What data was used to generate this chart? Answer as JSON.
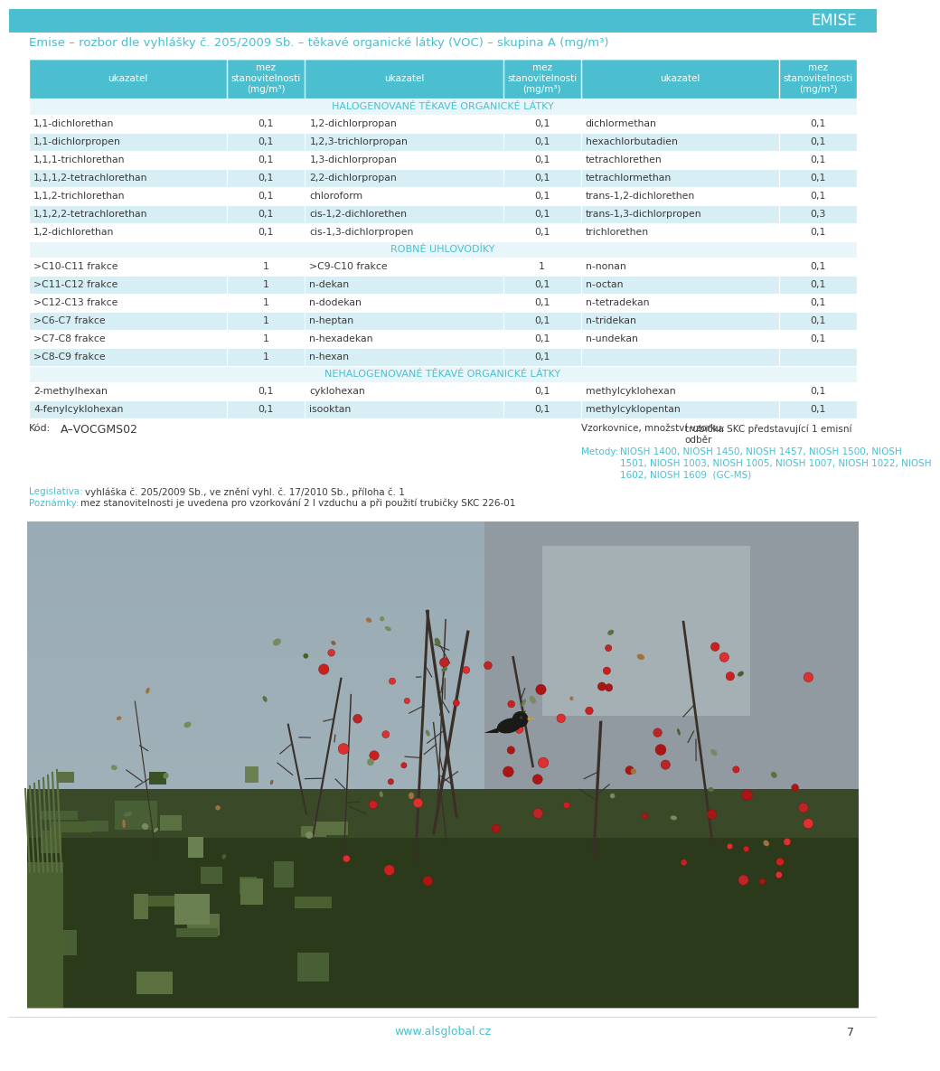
{
  "title": "Emise – rozbor dle vyhlášky č. 205/2009 Sb. – těkavé organické látky (VOC) – skupina A (mg/m³)",
  "header_bg": "#4BBFD0",
  "header_text": "white",
  "row_bg_light": "#D6EEF4",
  "row_bg_white": "#FFFFFF",
  "section_bg": "#E8F6FA",
  "section_text": "#4BBFD0",
  "col_headers": [
    "ukazatel",
    "mez\nstanovitelnosti\n(mg/m³)",
    "ukazatel",
    "mez\nstanovitelnosti\n(mg/m³)",
    "ukazatel",
    "mez\nstanovitelnosti\n(mg/m³)"
  ],
  "section1_title": "HALOGENOVANÉ TĚKAVÉ ORGANICKÉ LÁTKY",
  "section2_title": "ROBNÉ UHLOVODÍKY",
  "section3_title": "NEHALOGENOVANÉ TĚKAVÉ ORGANICKÉ LÁTKY",
  "rows_section1": [
    [
      "1,1-dichlorethan",
      "0,1",
      "1,2-dichlorpropan",
      "0,1",
      "dichlormethan",
      "0,1"
    ],
    [
      "1,1-dichlorpropen",
      "0,1",
      "1,2,3-trichlorpropan",
      "0,1",
      "hexachlorbutadien",
      "0,1"
    ],
    [
      "1,1,1-trichlorethan",
      "0,1",
      "1,3-dichlorpropan",
      "0,1",
      "tetrachlorethen",
      "0,1"
    ],
    [
      "1,1,1,2-tetrachlorethan",
      "0,1",
      "2,2-dichlorpropan",
      "0,1",
      "tetrachlormethan",
      "0,1"
    ],
    [
      "1,1,2-trichlorethan",
      "0,1",
      "chloroform",
      "0,1",
      "trans-1,2-dichlorethen",
      "0,1"
    ],
    [
      "1,1,2,2-tetrachlorethan",
      "0,1",
      "cis-1,2-dichlorethen",
      "0,1",
      "trans-1,3-dichlorpropen",
      "0,3"
    ],
    [
      "1,2-dichlorethan",
      "0,1",
      "cis-1,3-dichlorpropen",
      "0,1",
      "trichlorethen",
      "0,1"
    ]
  ],
  "rows_section2": [
    [
      ">C10-C11 frakce",
      "1",
      ">C9-C10 frakce",
      "1",
      "n-nonan",
      "0,1"
    ],
    [
      ">C11-C12 frakce",
      "1",
      "n-dekan",
      "0,1",
      "n-octan",
      "0,1"
    ],
    [
      ">C12-C13 frakce",
      "1",
      "n-dodekan",
      "0,1",
      "n-tetradekan",
      "0,1"
    ],
    [
      ">C6-C7 frakce",
      "1",
      "n-heptan",
      "0,1",
      "n-tridekan",
      "0,1"
    ],
    [
      ">C7-C8 frakce",
      "1",
      "n-hexadekan",
      "0,1",
      "n-undekan",
      "0,1"
    ],
    [
      ">C8-C9 frakce",
      "1",
      "n-hexan",
      "0,1",
      "",
      ""
    ]
  ],
  "rows_section3": [
    [
      "2-methylhexan",
      "0,1",
      "cyklohexan",
      "0,1",
      "methylcyklohexan",
      "0,1"
    ],
    [
      "4-fenylcyklohexan",
      "0,1",
      "isooktan",
      "0,1",
      "methylcyklopentan",
      "0,1"
    ]
  ],
  "kod_label": "Kód:",
  "kod_value": "A–VOCGMS02",
  "vzorkovnice_label": "Vzorkovnice, množství vzorku:",
  "vzorkovnice_text": " trubička SKC představující 1 emisní\nodběr",
  "metody_label": "Metody:",
  "metody_text": " NIOSH 1400, NIOSH 1450, NIOSH 1457, NIOSH 1500, NIOSH\n1501, NIOSH 1003, NIOSH 1005, NIOSH 1007, NIOSH 1022, NIOSH\n1602, NIOSH 1609  (GC-MS)",
  "legislativa_label": "Legislativa:",
  "legislativa_text": " vyhláška č. 205/2009 Sb., ve znění vyhl. č. 17/2010 Sb., příloha č. 1",
  "poznamky_label": "Poznámky:",
  "poznamky_text": " mez stanovitelnosti je uvedena pro vzorkování 2 l vzduchu a při použití trubičky SKC 226-01",
  "website": "www.alsglobal.cz",
  "page_num": "7",
  "text_color": "#3A3A3A",
  "link_color": "#4BBFD0",
  "title_color": "#4BBFD0"
}
